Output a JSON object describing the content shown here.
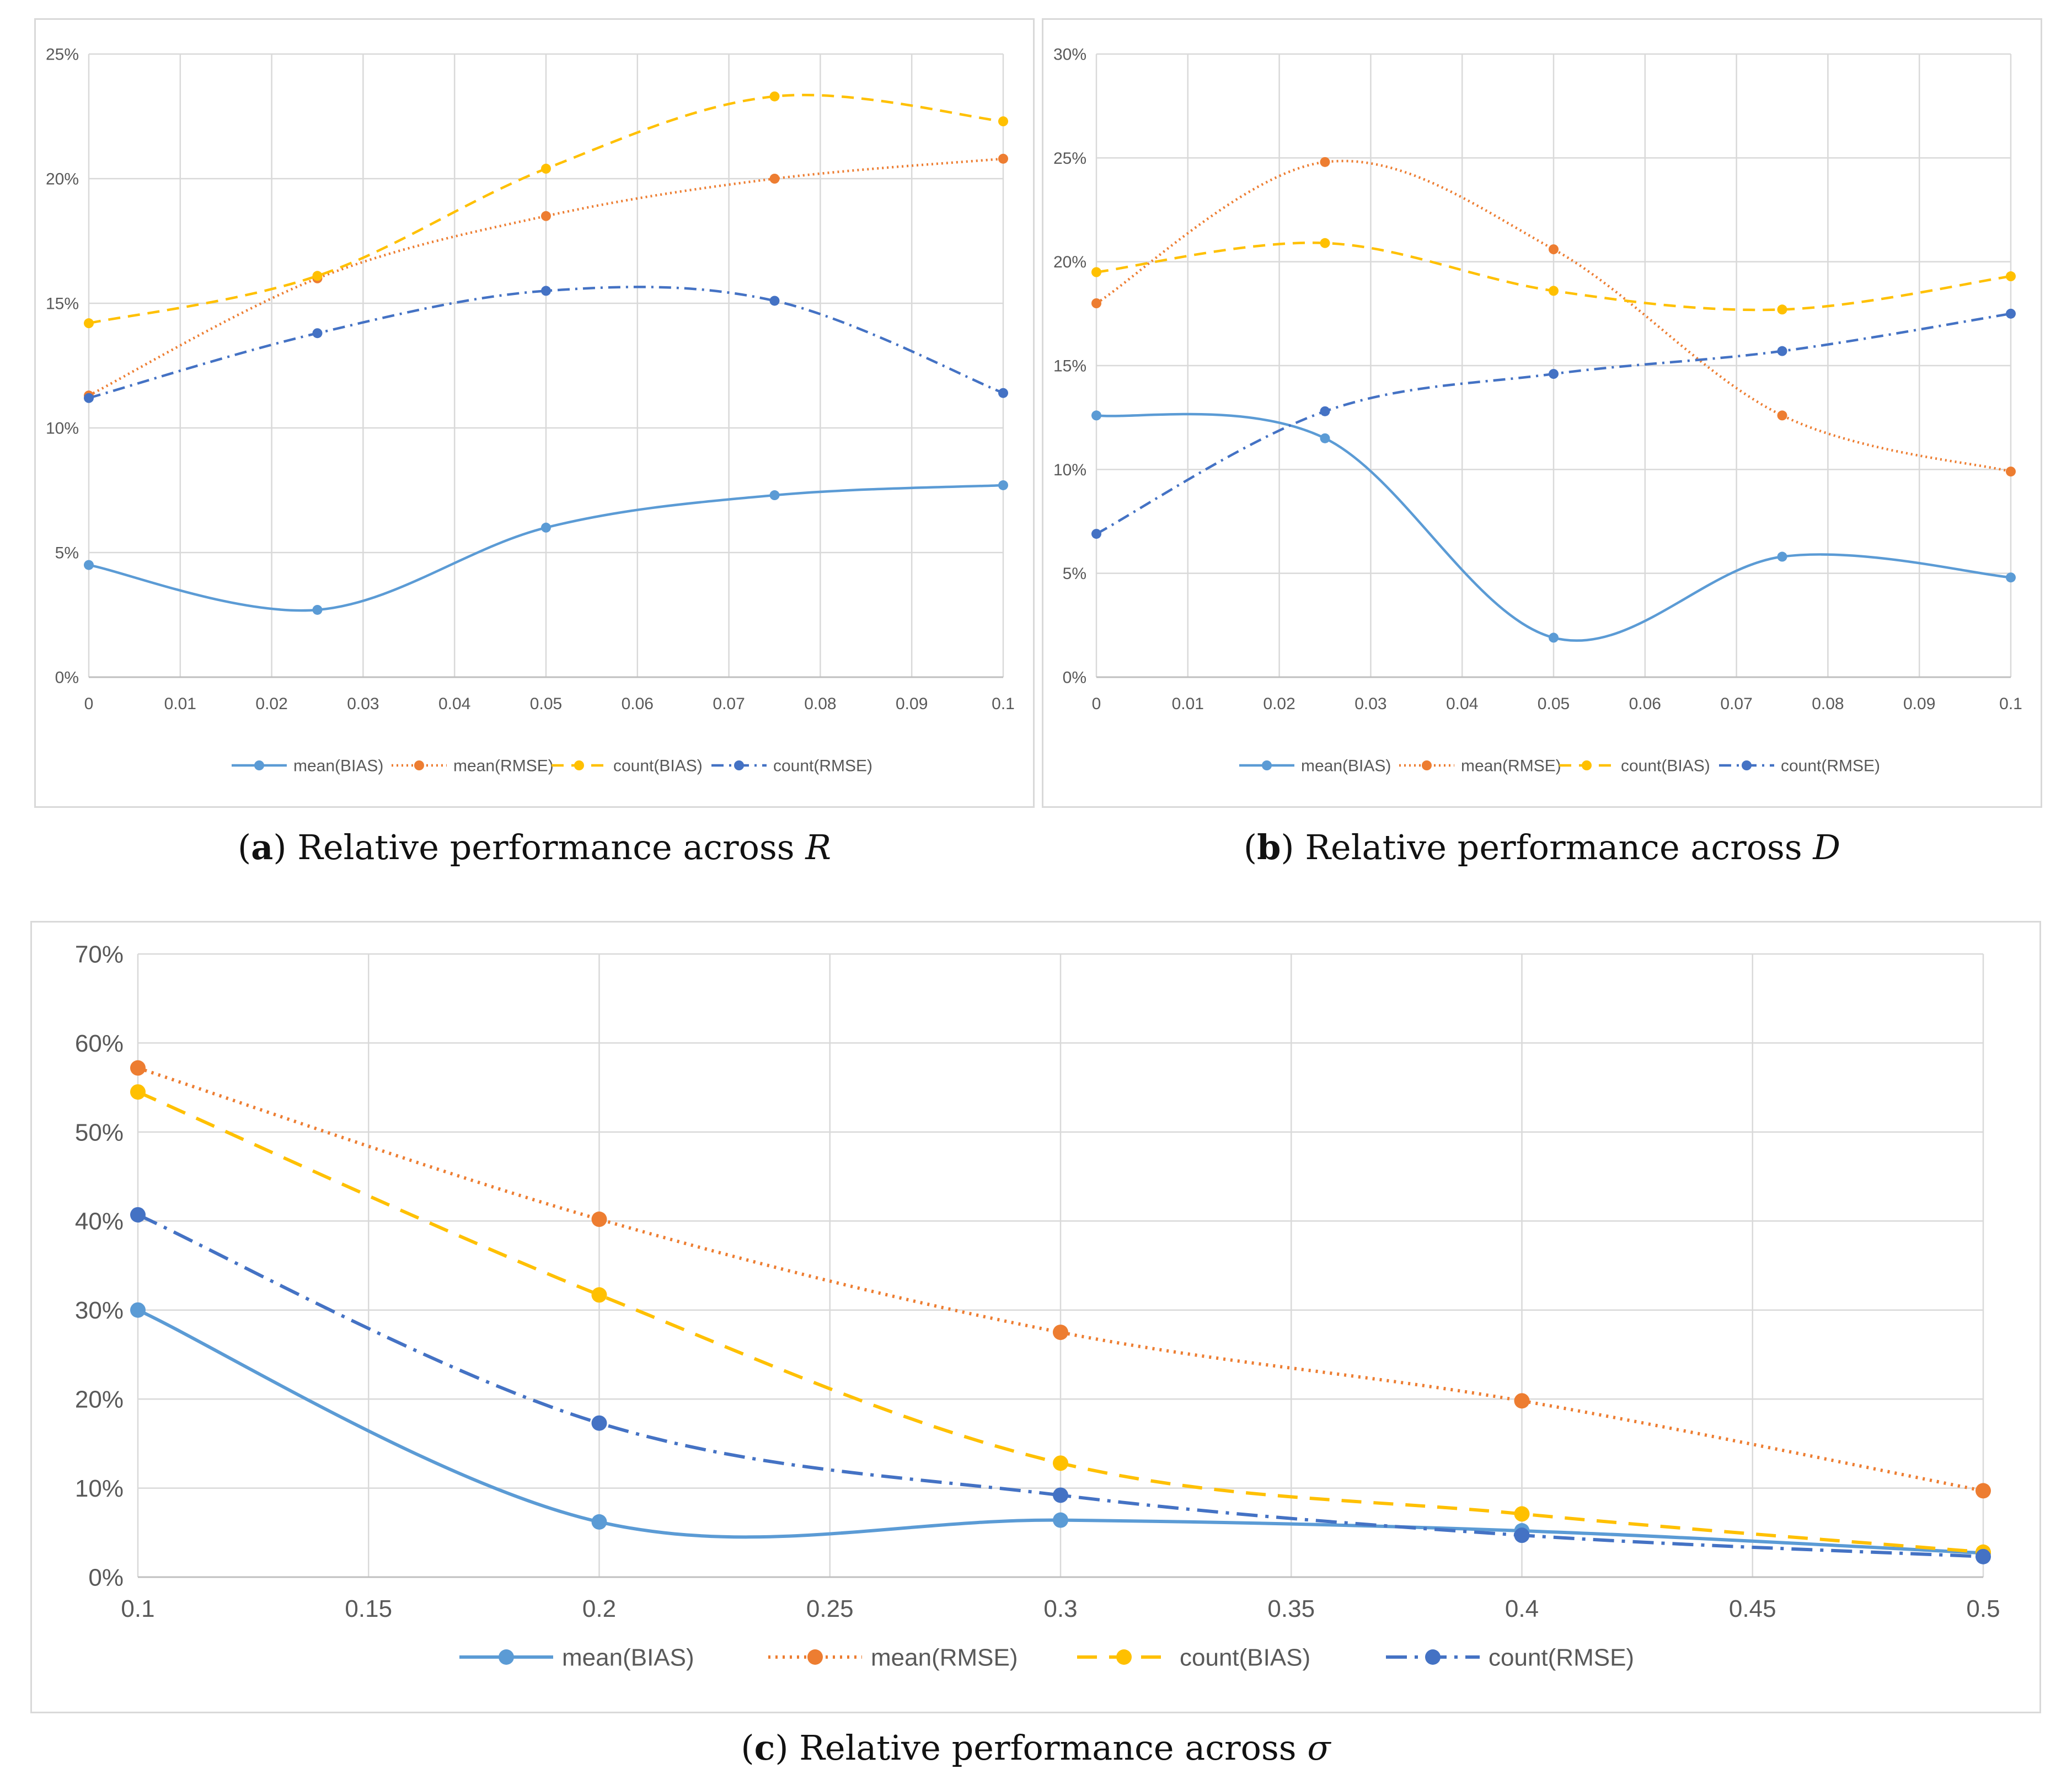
{
  "captions": [
    {
      "letter": "a",
      "text": "Relative performance across ",
      "var": "R"
    },
    {
      "letter": "b",
      "text": "Relative performance across ",
      "var": "D"
    },
    {
      "letter": "c",
      "text": "Relative performance across ",
      "var": "σ"
    }
  ],
  "colors": {
    "mean_bias": "#5b9bd5",
    "mean_rmse": "#ed7d31",
    "count_bias": "#ffc000",
    "count_rmse": "#4472c4",
    "grid": "#d9d9d9",
    "tick_text": "#595959"
  },
  "chart_data": [
    {
      "type": "line",
      "title": "",
      "xlabel": "",
      "ylabel": "",
      "x": [
        0,
        0.025,
        0.05,
        0.075,
        0.1
      ],
      "xlim": [
        0,
        0.1
      ],
      "xticks": [
        "0",
        "0.01",
        "0.02",
        "0.03",
        "0.04",
        "0.05",
        "0.06",
        "0.07",
        "0.08",
        "0.09",
        "0.1"
      ],
      "ylim": [
        0,
        25
      ],
      "yticks": [
        "0%",
        "5%",
        "10%",
        "15%",
        "20%",
        "25%"
      ],
      "legend_position": "bottom",
      "series": [
        {
          "name": "mean(BIAS)",
          "values": [
            4.5,
            2.7,
            6.0,
            7.3,
            7.7
          ],
          "style": "solid"
        },
        {
          "name": "mean(RMSE)",
          "values": [
            11.3,
            16.0,
            18.5,
            20.0,
            20.8
          ],
          "style": "dotted"
        },
        {
          "name": "count(BIAS)",
          "values": [
            14.2,
            16.1,
            20.4,
            23.3,
            22.3
          ],
          "style": "dashed"
        },
        {
          "name": "count(RMSE)",
          "values": [
            11.2,
            13.8,
            15.5,
            15.1,
            11.4
          ],
          "style": "dashdot"
        }
      ]
    },
    {
      "type": "line",
      "title": "",
      "xlabel": "",
      "ylabel": "",
      "x": [
        0,
        0.025,
        0.05,
        0.075,
        0.1
      ],
      "xlim": [
        0,
        0.1
      ],
      "xticks": [
        "0",
        "0.01",
        "0.02",
        "0.03",
        "0.04",
        "0.05",
        "0.06",
        "0.07",
        "0.08",
        "0.09",
        "0.1"
      ],
      "ylim": [
        0,
        30
      ],
      "yticks": [
        "0%",
        "5%",
        "10%",
        "15%",
        "20%",
        "25%",
        "30%"
      ],
      "legend_position": "bottom",
      "series": [
        {
          "name": "mean(BIAS)",
          "values": [
            12.6,
            11.5,
            1.9,
            5.8,
            4.8
          ],
          "style": "solid"
        },
        {
          "name": "mean(RMSE)",
          "values": [
            18.0,
            24.8,
            20.6,
            12.6,
            9.9
          ],
          "style": "dotted"
        },
        {
          "name": "count(BIAS)",
          "values": [
            19.5,
            20.9,
            18.6,
            17.7,
            19.3
          ],
          "style": "dashed"
        },
        {
          "name": "count(RMSE)",
          "values": [
            6.9,
            12.8,
            14.6,
            15.7,
            17.5
          ],
          "style": "dashdot"
        }
      ]
    },
    {
      "type": "line",
      "title": "",
      "xlabel": "",
      "ylabel": "",
      "x": [
        0.1,
        0.2,
        0.3,
        0.4,
        0.5
      ],
      "xlim": [
        0.1,
        0.5
      ],
      "xticks": [
        "0.1",
        "0.15",
        "0.2",
        "0.25",
        "0.3",
        "0.35",
        "0.4",
        "0.45",
        "0.5"
      ],
      "ylim": [
        0,
        70
      ],
      "yticks": [
        "0%",
        "10%",
        "20%",
        "30%",
        "40%",
        "50%",
        "60%",
        "70%"
      ],
      "legend_position": "bottom",
      "series": [
        {
          "name": "mean(BIAS)",
          "values": [
            30.0,
            6.2,
            6.4,
            5.2,
            2.7
          ],
          "style": "solid"
        },
        {
          "name": "mean(RMSE)",
          "values": [
            57.2,
            40.2,
            27.5,
            19.8,
            9.7
          ],
          "style": "dotted"
        },
        {
          "name": "count(BIAS)",
          "values": [
            54.5,
            31.7,
            12.8,
            7.1,
            2.8
          ],
          "style": "dashed"
        },
        {
          "name": "count(RMSE)",
          "values": [
            40.7,
            17.3,
            9.2,
            4.7,
            2.3
          ],
          "style": "dashdot"
        }
      ]
    }
  ]
}
